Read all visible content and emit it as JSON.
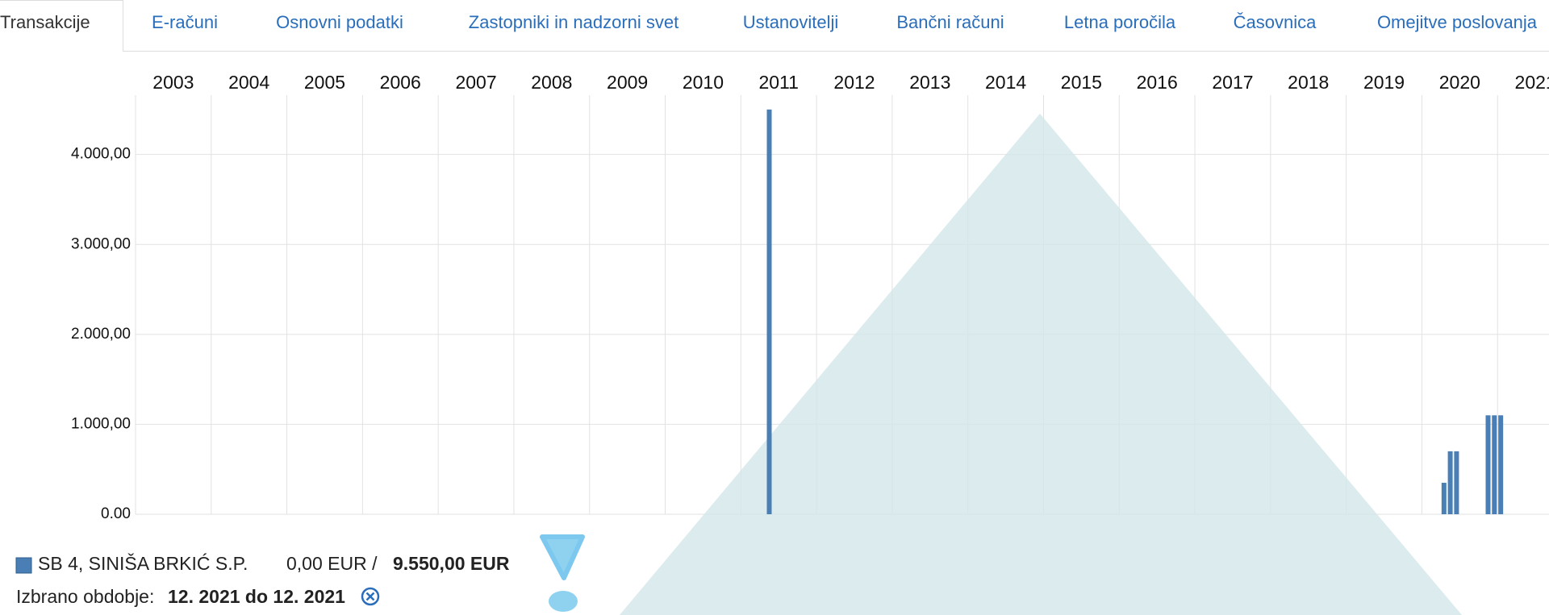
{
  "tabs": [
    "Transakcije",
    "E-računi",
    "Osnovni podatki",
    "Zastopniki in nadzorni svet",
    "Ustanovitelji",
    "Bančni računi",
    "Letna poročila",
    "Časovnica",
    "Omejitve poslovanja"
  ],
  "chart_data": {
    "type": "bar",
    "x": [
      2011.375,
      2020.292,
      2020.375,
      2020.458,
      2020.875,
      2020.958,
      2021.042
    ],
    "series": [
      {
        "name": "SB 4, SINIŠA BRKIĆ S.P.",
        "color": "#4a7fb5",
        "values": [
          4500,
          350,
          700,
          700,
          1100,
          1100,
          1100
        ]
      }
    ],
    "xlim": [
      2003,
      2021.68
    ],
    "xticks": [
      2003,
      2004,
      2005,
      2006,
      2007,
      2008,
      2009,
      2010,
      2011,
      2012,
      2013,
      2014,
      2015,
      2016,
      2017,
      2018,
      2019,
      2020,
      2021
    ],
    "ylim": [
      0,
      4660
    ],
    "yticks": [
      {
        "value": 0,
        "label": "0.00"
      },
      {
        "value": 1000,
        "label": "1.000,00"
      },
      {
        "value": 2000,
        "label": "2.000,00"
      },
      {
        "value": 3000,
        "label": "3.000,00"
      },
      {
        "value": 4000,
        "label": "4.000,00"
      }
    ],
    "grid": true
  },
  "legend": {
    "amount": "0,00 EUR /",
    "total": "9.550,00 EUR"
  },
  "period": {
    "label": "Izbrano obdobje:",
    "value": "12. 2021 do 12. 2021"
  }
}
